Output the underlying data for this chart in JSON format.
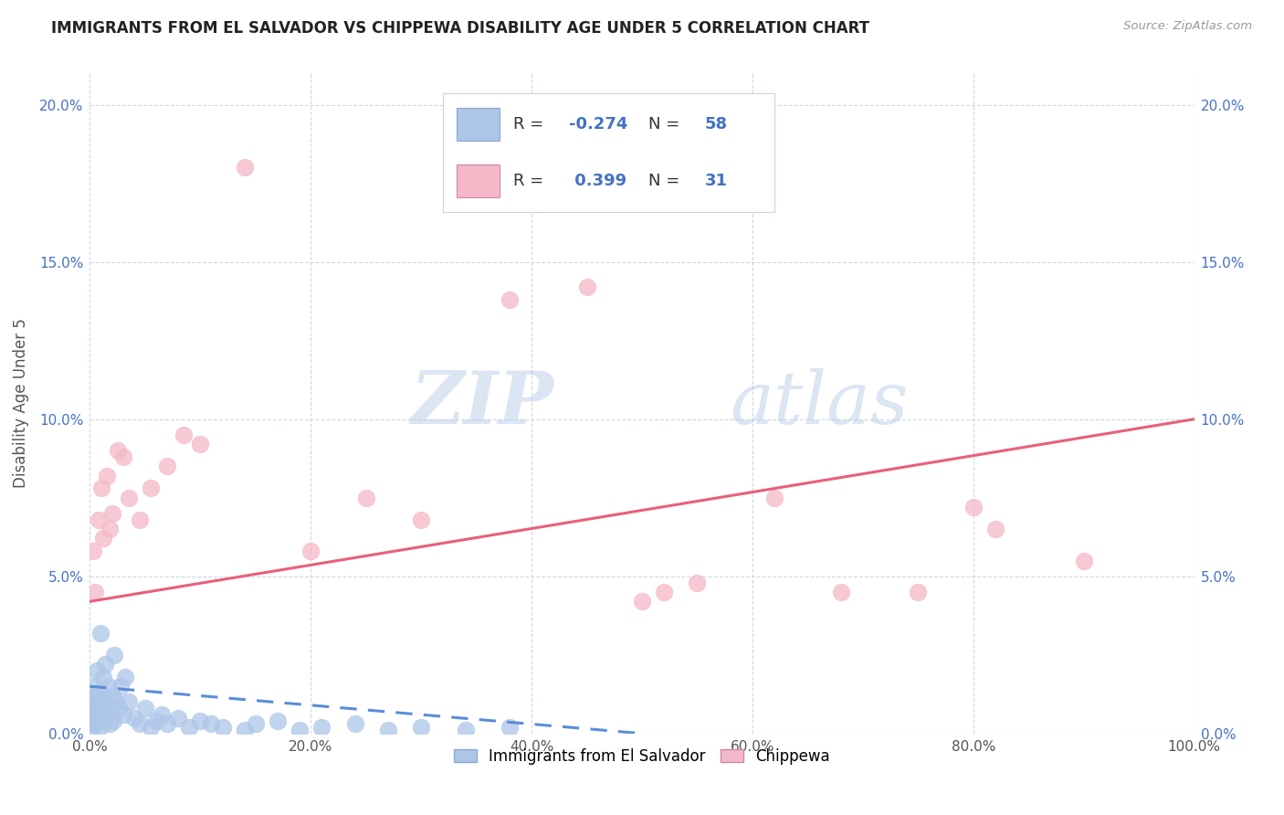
{
  "title": "IMMIGRANTS FROM EL SALVADOR VS CHIPPEWA DISABILITY AGE UNDER 5 CORRELATION CHART",
  "source": "Source: ZipAtlas.com",
  "ylabel": "Disability Age Under 5",
  "legend_bottom": [
    "Immigrants from El Salvador",
    "Chippewa"
  ],
  "r_blue": -0.274,
  "n_blue": 58,
  "r_pink": 0.399,
  "n_pink": 31,
  "color_blue": "#adc6e8",
  "color_pink": "#f5b8c8",
  "color_text_blue": "#4472c4",
  "watermark_zip": "ZIP",
  "watermark_atlas": "atlas",
  "xlim": [
    0.0,
    100.0
  ],
  "ylim": [
    0.0,
    21.0
  ],
  "blue_scatter_x": [
    0.1,
    0.15,
    0.2,
    0.25,
    0.3,
    0.35,
    0.4,
    0.45,
    0.5,
    0.55,
    0.6,
    0.65,
    0.7,
    0.75,
    0.8,
    0.85,
    0.9,
    0.95,
    1.0,
    1.1,
    1.2,
    1.3,
    1.4,
    1.5,
    1.6,
    1.7,
    1.8,
    2.0,
    2.1,
    2.2,
    2.4,
    2.6,
    2.8,
    3.0,
    3.2,
    3.5,
    4.0,
    4.5,
    5.0,
    5.5,
    6.0,
    6.5,
    7.0,
    8.0,
    9.0,
    10.0,
    11.0,
    12.0,
    14.0,
    15.0,
    17.0,
    19.0,
    21.0,
    24.0,
    27.0,
    30.0,
    34.0,
    38.0
  ],
  "blue_scatter_y": [
    0.5,
    0.3,
    1.0,
    0.2,
    0.8,
    0.4,
    1.5,
    0.6,
    1.2,
    0.3,
    2.0,
    0.5,
    1.0,
    0.8,
    1.3,
    0.2,
    0.9,
    3.2,
    0.6,
    0.4,
    1.8,
    0.5,
    2.2,
    1.0,
    0.7,
    1.5,
    0.3,
    1.2,
    0.4,
    2.5,
    1.0,
    0.8,
    1.5,
    0.6,
    1.8,
    1.0,
    0.5,
    0.3,
    0.8,
    0.2,
    0.4,
    0.6,
    0.3,
    0.5,
    0.2,
    0.4,
    0.3,
    0.2,
    0.1,
    0.3,
    0.4,
    0.1,
    0.2,
    0.3,
    0.1,
    0.2,
    0.1,
    0.2
  ],
  "pink_scatter_x": [
    0.3,
    0.5,
    0.8,
    1.0,
    1.2,
    1.5,
    1.8,
    2.0,
    2.5,
    3.0,
    3.5,
    4.5,
    5.5,
    7.0,
    8.5,
    10.0,
    14.0,
    20.0,
    25.0,
    30.0,
    38.0,
    45.0,
    52.0,
    62.0,
    68.0,
    75.0,
    82.0,
    90.0,
    50.0,
    55.0,
    80.0
  ],
  "pink_scatter_y": [
    5.8,
    4.5,
    6.8,
    7.8,
    6.2,
    8.2,
    6.5,
    7.0,
    9.0,
    8.8,
    7.5,
    6.8,
    7.8,
    8.5,
    9.5,
    9.2,
    18.0,
    5.8,
    7.5,
    6.8,
    13.8,
    14.2,
    4.5,
    7.5,
    4.5,
    4.5,
    6.5,
    5.5,
    4.2,
    4.8,
    7.2
  ],
  "blue_line_x": [
    0.0,
    50.0
  ],
  "blue_line_y": [
    1.5,
    0.0
  ],
  "pink_line_x": [
    0.0,
    100.0
  ],
  "pink_line_y": [
    4.2,
    10.0
  ],
  "ytick_values": [
    0.0,
    5.0,
    10.0,
    15.0,
    20.0
  ],
  "ytick_labels": [
    "0.0%",
    "5.0%",
    "10.0%",
    "15.0%",
    "20.0%"
  ],
  "xtick_values": [
    0.0,
    20.0,
    40.0,
    60.0,
    80.0,
    100.0
  ],
  "xtick_labels": [
    "0.0%",
    "20.0%",
    "40.0%",
    "60.0%",
    "80.0%",
    "100.0%"
  ]
}
